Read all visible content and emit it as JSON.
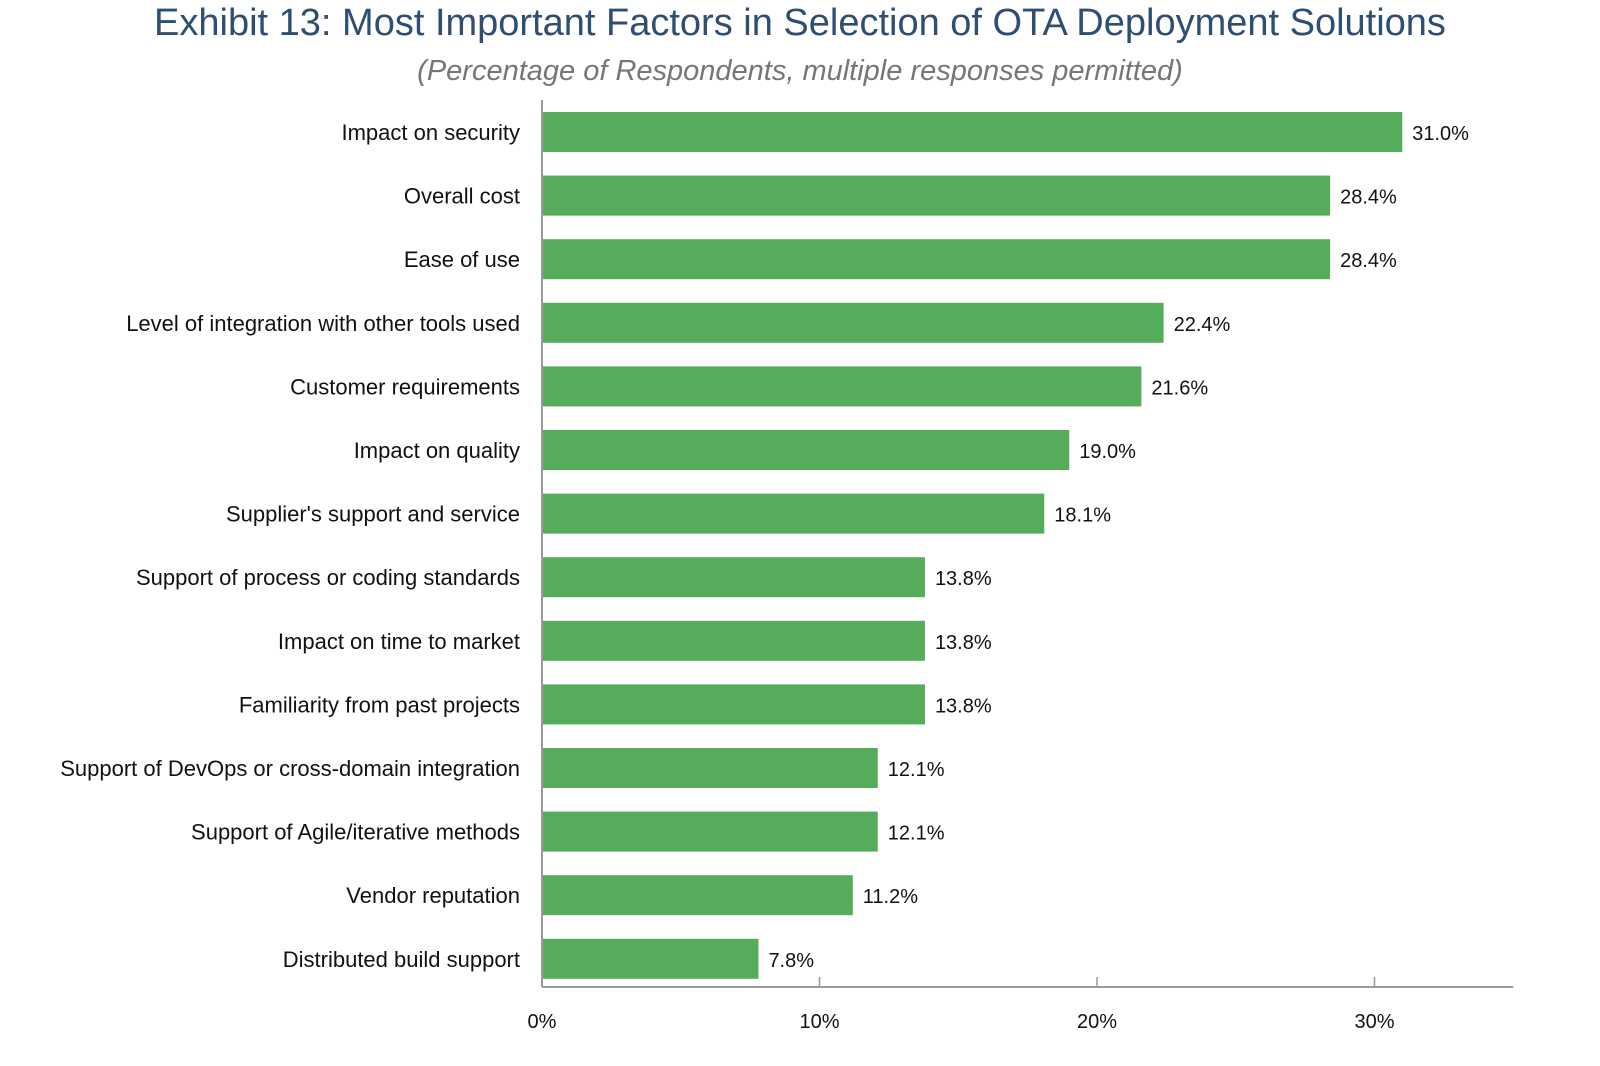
{
  "chart_data": {
    "type": "bar",
    "orientation": "horizontal",
    "title": "Exhibit 13: Most Important Factors in Selection of OTA Deployment Solutions",
    "subtitle": "(Percentage of Respondents, multiple responses permitted)",
    "xlabel": "",
    "ylabel": "",
    "categories": [
      "Impact on security",
      "Overall cost",
      "Ease of use",
      "Level of integration with other tools used",
      "Customer requirements",
      "Impact on quality",
      "Supplier's support and service",
      "Support of process or coding standards",
      "Impact on time to market",
      "Familiarity from past projects",
      "Support of DevOps or cross-domain integration",
      "Support of Agile/iterative methods",
      "Vendor reputation",
      "Distributed build support"
    ],
    "values": [
      31.0,
      28.4,
      28.4,
      22.4,
      21.6,
      19.0,
      18.1,
      13.8,
      13.8,
      13.8,
      12.1,
      12.1,
      11.2,
      7.8
    ],
    "value_labels": [
      "31.0%",
      "28.4%",
      "28.4%",
      "22.4%",
      "21.6%",
      "19.0%",
      "18.1%",
      "13.8%",
      "13.8%",
      "13.8%",
      "12.1%",
      "12.1%",
      "11.2%",
      "7.8%"
    ],
    "xlim": [
      0,
      35
    ],
    "xticks": [
      0,
      10,
      20,
      30
    ],
    "xtick_labels": [
      "0%",
      "10%",
      "20%",
      "30%"
    ],
    "grid": false,
    "legend": "none",
    "bar_color": "#55ad5b"
  }
}
